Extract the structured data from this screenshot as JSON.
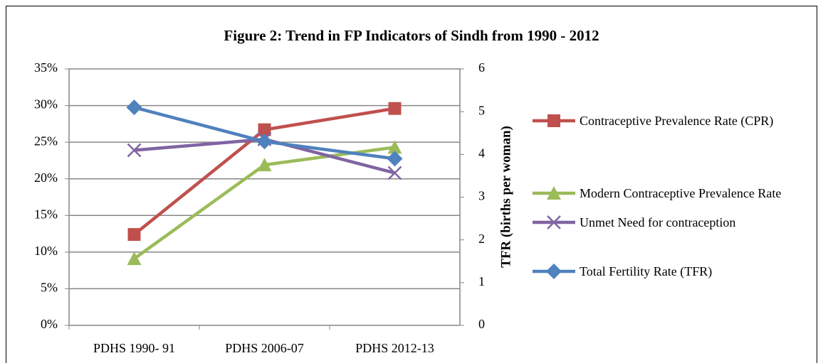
{
  "chart_data": {
    "type": "line",
    "title": "Figure 2: Trend in FP Indicators of Sindh from 1990 - 2012",
    "categories": [
      "PDHS 1990- 91",
      "PDHS 2006-07",
      "PDHS 2012-13"
    ],
    "y2_label": "TFR (births per woman)",
    "ylim": [
      0,
      35
    ],
    "yticks": [
      {
        "value": 0,
        "label": "0%"
      },
      {
        "value": 5,
        "label": "5%"
      },
      {
        "value": 10,
        "label": "10%"
      },
      {
        "value": 15,
        "label": "15%"
      },
      {
        "value": 20,
        "label": "20%"
      },
      {
        "value": 25,
        "label": "25%"
      },
      {
        "value": 30,
        "label": "30%"
      },
      {
        "value": 35,
        "label": "35%"
      }
    ],
    "y2lim": [
      0,
      6
    ],
    "y2ticks": [
      0,
      1,
      2,
      3,
      4,
      5,
      6
    ],
    "grid": true,
    "legend": "right",
    "series": [
      {
        "name": "Contraceptive Prevalence Rate (CPR)",
        "color": "#c0504d",
        "marker": "square",
        "values": [
          12.4,
          26.7,
          29.6
        ]
      },
      {
        "name": "Modern Contraceptive Prevalence Rate",
        "color": "#9bbb59",
        "marker": "triangle",
        "values": [
          9.1,
          21.9,
          24.3
        ]
      },
      {
        "name": "Unmet Need for contraception",
        "color": "#8064a2",
        "marker": "x",
        "values": [
          23.9,
          25.4,
          20.8
        ]
      },
      {
        "name": "Total Fertility Rate (TFR)",
        "color": "#4f81bd",
        "marker": "diamond",
        "axis": "y2",
        "values": [
          5.1,
          4.3,
          3.9
        ]
      }
    ]
  }
}
